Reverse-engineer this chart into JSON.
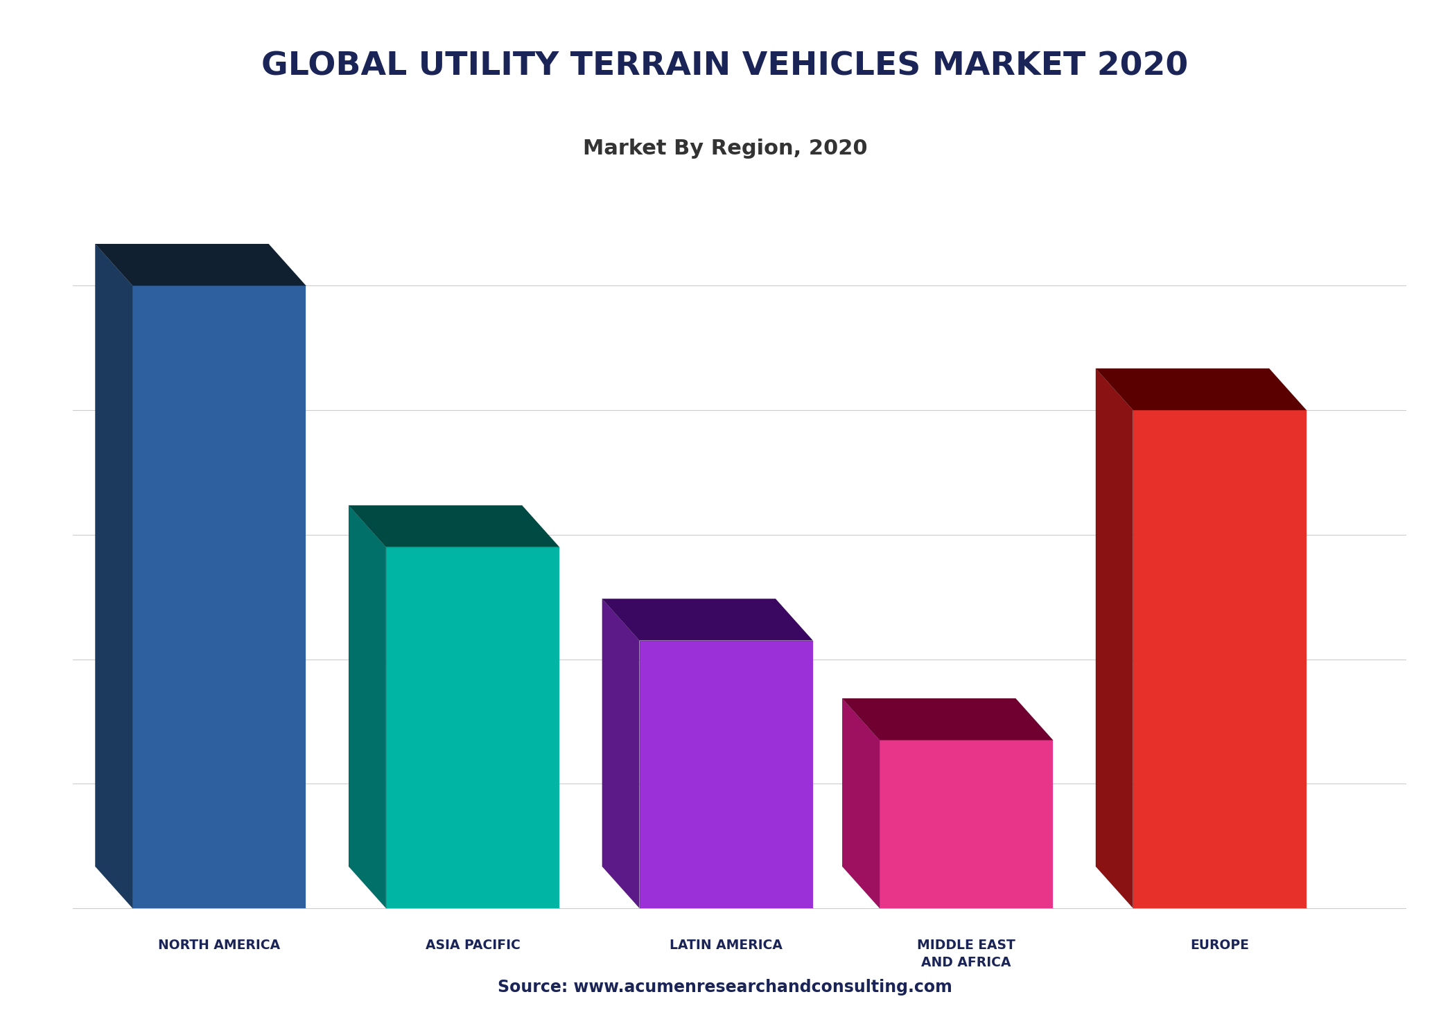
{
  "title": "GLOBAL UTILITY TERRAIN VEHICLES MARKET 2020",
  "subtitle": "Market By Region, 2020",
  "source": "Source: www.acumenresearchandconsulting.com",
  "title_color": "#1a2456",
  "subtitle_color": "#333333",
  "source_color": "#1a2456",
  "background_color": "#ffffff",
  "separator_color": "#1a2456",
  "categories": [
    "NORTH AMERICA",
    "ASIA PACIFIC",
    "LATIN AMERICA",
    "MIDDLE EAST\nAND AFRICA",
    "EUROPE"
  ],
  "values": [
    100,
    58,
    43,
    27,
    80
  ],
  "bar_colors_front": [
    "#2e5f9e",
    "#00b5a3",
    "#9b30d9",
    "#e8358a",
    "#e8302a"
  ],
  "bar_colors_side": [
    "#1c3a5e",
    "#007068",
    "#5c1a88",
    "#9e1060",
    "#8b1212"
  ],
  "bar_colors_top": [
    "#102030",
    "#004a44",
    "#3a0860",
    "#700030",
    "#5a0000"
  ],
  "label_color": "#1a2456",
  "grid_color": "#cccccc",
  "figsize": [
    20.92,
    14.81
  ],
  "dpi": 100
}
